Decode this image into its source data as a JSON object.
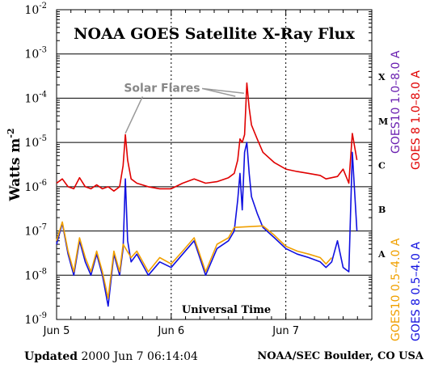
{
  "chart_data": {
    "type": "line",
    "title": "NOAA GOES Satellite X-Ray Flux",
    "ylabel": "Watts m",
    "ylabel_sup": "-2",
    "xlabel": "Universal Time",
    "yscale": "log",
    "ylim": [
      1e-09,
      0.01
    ],
    "y_ticks": [
      {
        "mant": "10",
        "exp": "-9"
      },
      {
        "mant": "10",
        "exp": "-8"
      },
      {
        "mant": "10",
        "exp": "-7"
      },
      {
        "mant": "10",
        "exp": "-6"
      },
      {
        "mant": "10",
        "exp": "-5"
      },
      {
        "mant": "10",
        "exp": "-4"
      },
      {
        "mant": "10",
        "exp": "-3"
      },
      {
        "mant": "10",
        "exp": "-2"
      }
    ],
    "x_tick_labels": [
      "Jun 5",
      "Jun 6",
      "Jun 7"
    ],
    "xlim_days": [
      0,
      2.75
    ],
    "flare_classes": [
      {
        "label": "A",
        "level": 1e-08
      },
      {
        "label": "B",
        "level": 1e-07
      },
      {
        "label": "C",
        "level": 1e-06
      },
      {
        "label": "M",
        "level": 1e-05
      },
      {
        "label": "X",
        "level": 0.0001
      }
    ],
    "annotation": "Solar Flares",
    "grid": true,
    "series": [
      {
        "name": "GOES 8 1.0–8.0 A",
        "color": "#e00000",
        "x": [
          0,
          0.05,
          0.1,
          0.15,
          0.2,
          0.25,
          0.3,
          0.35,
          0.4,
          0.45,
          0.5,
          0.55,
          0.58,
          0.6,
          0.62,
          0.65,
          0.7,
          0.8,
          0.9,
          1.0,
          1.1,
          1.2,
          1.3,
          1.4,
          1.5,
          1.55,
          1.58,
          1.6,
          1.62,
          1.64,
          1.66,
          1.68,
          1.7,
          1.75,
          1.8,
          1.9,
          2.0,
          2.1,
          2.2,
          2.3,
          2.35,
          2.4,
          2.45,
          2.5,
          2.55,
          2.58,
          2.62
        ],
        "y": [
          1.2e-06,
          1.5e-06,
          1e-06,
          9e-07,
          1.6e-06,
          1e-06,
          9e-07,
          1.1e-06,
          9e-07,
          1e-06,
          8e-07,
          1e-06,
          3e-06,
          1.5e-05,
          4e-06,
          1.5e-06,
          1.2e-06,
          1e-06,
          9e-07,
          9e-07,
          1.2e-06,
          1.5e-06,
          1.2e-06,
          1.3e-06,
          1.6e-06,
          2e-06,
          4e-06,
          1.2e-05,
          1e-05,
          1.5e-05,
          0.00022,
          6e-05,
          2.5e-05,
          1.2e-05,
          6e-06,
          3.5e-06,
          2.5e-06,
          2.2e-06,
          2e-06,
          1.8e-06,
          1.5e-06,
          1.6e-06,
          1.7e-06,
          2.5e-06,
          1.2e-06,
          1.6e-05,
          4e-06
        ]
      },
      {
        "name": "GOES 8 0.5–4.0 A",
        "color": "#1010e0",
        "x": [
          0,
          0.05,
          0.1,
          0.15,
          0.2,
          0.25,
          0.3,
          0.35,
          0.4,
          0.45,
          0.5,
          0.55,
          0.58,
          0.6,
          0.62,
          0.65,
          0.7,
          0.8,
          0.9,
          1.0,
          1.1,
          1.2,
          1.3,
          1.4,
          1.5,
          1.55,
          1.58,
          1.6,
          1.62,
          1.64,
          1.66,
          1.68,
          1.7,
          1.75,
          1.8,
          1.9,
          2.0,
          2.1,
          2.2,
          2.3,
          2.35,
          2.4,
          2.45,
          2.5,
          2.55,
          2.58,
          2.62
        ],
        "y": [
          5e-08,
          1.5e-07,
          3e-08,
          1e-08,
          6e-08,
          2e-08,
          1e-08,
          3e-08,
          1e-08,
          2e-09,
          3e-08,
          1e-08,
          4e-08,
          1.5e-06,
          6e-08,
          2e-08,
          3e-08,
          1e-08,
          2e-08,
          1.5e-08,
          3e-08,
          6e-08,
          1e-08,
          4e-08,
          6e-08,
          1e-07,
          5e-07,
          2e-06,
          3e-07,
          6e-06,
          1e-05,
          2e-06,
          6e-07,
          2.5e-07,
          1.2e-07,
          7e-08,
          4e-08,
          3e-08,
          2.5e-08,
          2e-08,
          1.5e-08,
          2e-08,
          6e-08,
          1.5e-08,
          1.2e-08,
          6e-06,
          1e-07
        ]
      },
      {
        "name": "GOES10 1.0–8.0 A",
        "color": "#6a1fb0",
        "x": [],
        "y": []
      },
      {
        "name": "GOES10 0.5–4.0 A",
        "color": "#f0a000",
        "x": [
          0,
          0.05,
          0.1,
          0.15,
          0.2,
          0.25,
          0.3,
          0.35,
          0.4,
          0.45,
          0.5,
          0.55,
          0.58,
          0.65,
          0.7,
          0.8,
          0.9,
          1.0,
          1.1,
          1.2,
          1.3,
          1.4,
          1.5,
          1.55,
          1.8,
          1.9,
          2.0,
          2.1,
          2.2,
          2.3,
          2.35,
          2.4
        ],
        "y": [
          6e-08,
          1.6e-07,
          3.5e-08,
          1.2e-08,
          7e-08,
          2.5e-08,
          1.2e-08,
          3.5e-08,
          1.2e-08,
          3e-09,
          3.5e-08,
          1.2e-08,
          5e-08,
          2.5e-08,
          3.5e-08,
          1.2e-08,
          2.5e-08,
          1.8e-08,
          3.5e-08,
          7e-08,
          1.2e-08,
          5e-08,
          7e-08,
          1.2e-07,
          1.3e-07,
          8e-08,
          4.5e-08,
          3.5e-08,
          3e-08,
          2.5e-08,
          1.8e-08,
          2.5e-08
        ]
      }
    ]
  },
  "footer": {
    "updated_label": "Updated",
    "updated_value": "2000 Jun  7 06:14:04",
    "source": "NOAA/SEC Boulder, CO USA"
  },
  "legend_right": [
    {
      "text": "GOES10 1.0–8.0 A",
      "color": "#6a1fb0"
    },
    {
      "text": "GOES 8 1.0–8.0 A",
      "color": "#e00000"
    },
    {
      "text": "GOES10 0.5–4.0 A",
      "color": "#f0a000"
    },
    {
      "text": "GOES 8 0.5–4.0 A",
      "color": "#1010e0"
    }
  ]
}
